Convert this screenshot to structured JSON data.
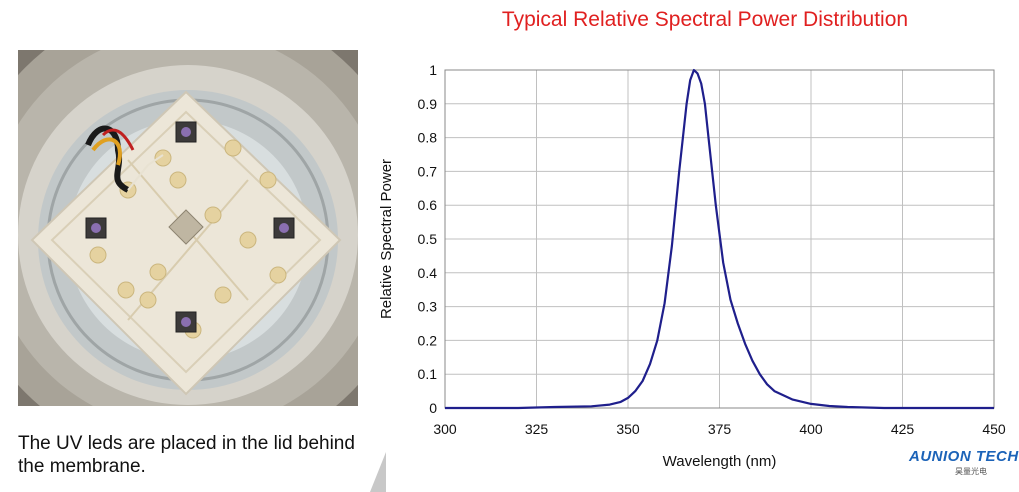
{
  "caption": "The UV leds are placed in the lid behind the membrane.",
  "logo": {
    "text": "AUNION TECH",
    "subtext": "昊量光电"
  },
  "colors": {
    "title": "#e02020",
    "line": "#1f1f8c",
    "grid": "#c0c0c0",
    "logo": "#1c63b8"
  },
  "chart_data": {
    "type": "line",
    "title": "Typical Relative Spectral Power Distribution",
    "xlabel": "Wavelength (nm)",
    "ylabel": "Relative Spectral Power",
    "xlim": [
      300,
      450
    ],
    "ylim": [
      0,
      1
    ],
    "xticks": [
      "300",
      "325",
      "350",
      "375",
      "400",
      "425",
      "450"
    ],
    "yticks": [
      "0",
      "0.1",
      "0.2",
      "0.3",
      "0.4",
      "0.5",
      "0.6",
      "0.7",
      "0.8",
      "0.9",
      "1"
    ],
    "grid": true,
    "series": [
      {
        "x": [
          300,
          320,
          330,
          340,
          345,
          348,
          350,
          352,
          354,
          356,
          358,
          360,
          362,
          364,
          366,
          367,
          368,
          369,
          370,
          371,
          372,
          374,
          376,
          378,
          380,
          382,
          384,
          386,
          388,
          390,
          395,
          400,
          405,
          410,
          420,
          450
        ],
        "y": [
          0.0,
          0.0,
          0.003,
          0.005,
          0.01,
          0.018,
          0.03,
          0.05,
          0.08,
          0.13,
          0.2,
          0.31,
          0.48,
          0.7,
          0.9,
          0.97,
          1.0,
          0.99,
          0.96,
          0.9,
          0.8,
          0.6,
          0.43,
          0.32,
          0.25,
          0.19,
          0.14,
          0.1,
          0.07,
          0.05,
          0.025,
          0.012,
          0.006,
          0.003,
          0.0,
          0.0
        ]
      }
    ]
  }
}
